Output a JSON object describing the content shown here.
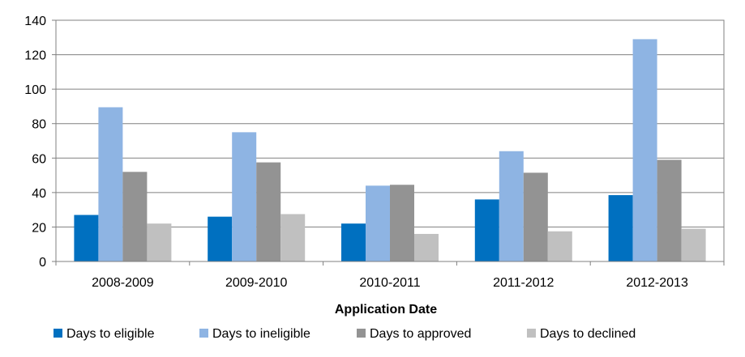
{
  "chart_data": {
    "type": "bar",
    "title": "",
    "xlabel": "Application Date",
    "ylabel": "",
    "categories": [
      "2008-2009",
      "2009-2010",
      "2010-2011",
      "2011-2012",
      "2012-2013"
    ],
    "series": [
      {
        "name": "Days to eligible",
        "color": "#0070c0",
        "values": [
          27,
          26,
          22,
          36,
          38.5
        ]
      },
      {
        "name": "Days to ineligible",
        "color": "#8eb4e3",
        "values": [
          89.5,
          75,
          44,
          64,
          129
        ]
      },
      {
        "name": "Days to approved",
        "color": "#939393",
        "values": [
          52,
          57.5,
          44.5,
          51.5,
          59
        ]
      },
      {
        "name": "Days to declined",
        "color": "#c0c0c0",
        "values": [
          22,
          27.5,
          16,
          17.5,
          19
        ]
      }
    ],
    "ylim": [
      0,
      140
    ],
    "yticks": [
      0,
      20,
      40,
      60,
      80,
      100,
      120,
      140
    ],
    "grid": true,
    "legend_position": "bottom"
  }
}
